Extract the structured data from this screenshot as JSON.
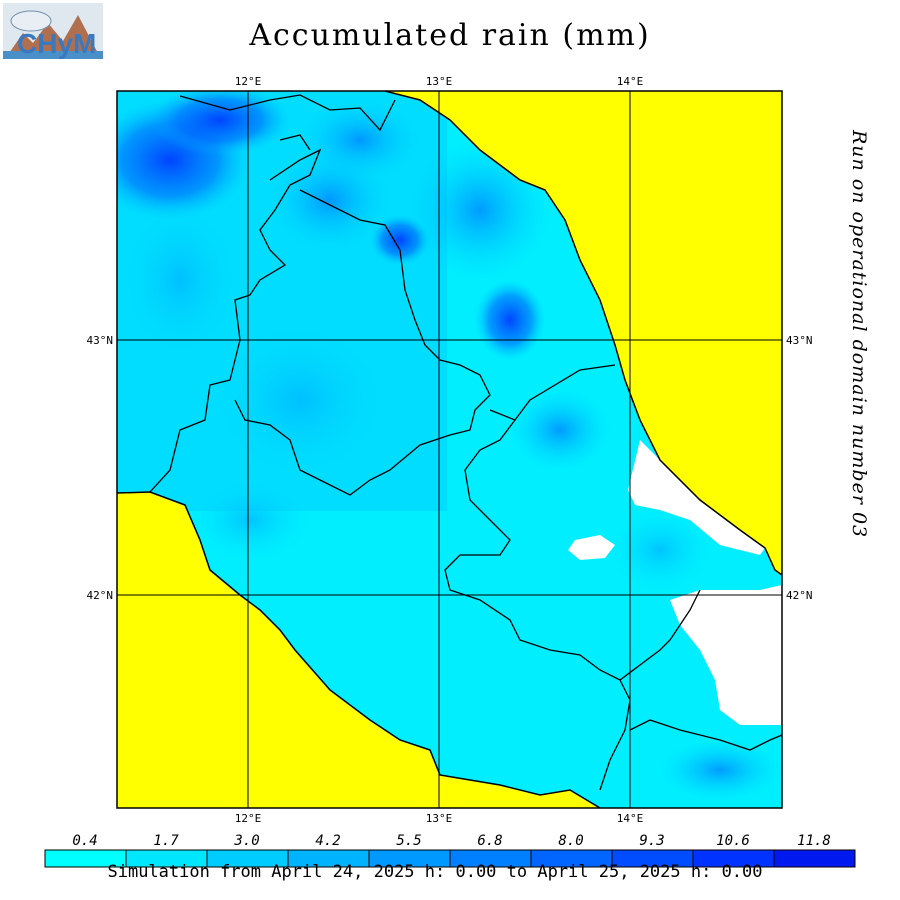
{
  "header": {
    "title": "Accumulated rain (mm)",
    "side_text": "Run on operational domain number 03"
  },
  "logo": {
    "icon": "chym-logo-icon",
    "text": "CHyM"
  },
  "map": {
    "lon_ticks": [
      "12°E",
      "13°E",
      "14°E"
    ],
    "lat_ticks": [
      "43°N",
      "42°N"
    ],
    "colors": {
      "sea": "#ffff00",
      "land_base": "#00eeff",
      "border": "#000000",
      "dry": "#ffffff"
    }
  },
  "legend": {
    "values": [
      "0.4",
      "1.7",
      "3.0",
      "4.2",
      "5.5",
      "6.8",
      "8.0",
      "9.3",
      "10.6",
      "11.8"
    ],
    "colors": [
      "#00ffff",
      "#00e6ff",
      "#00ccff",
      "#00b3ff",
      "#0099ff",
      "#0080ff",
      "#0066ff",
      "#004cff",
      "#0033ff",
      "#0019ee"
    ]
  },
  "footer": {
    "caption": "Simulation from April 24, 2025 h: 0.00 to April 25, 2025 h: 0.00"
  }
}
